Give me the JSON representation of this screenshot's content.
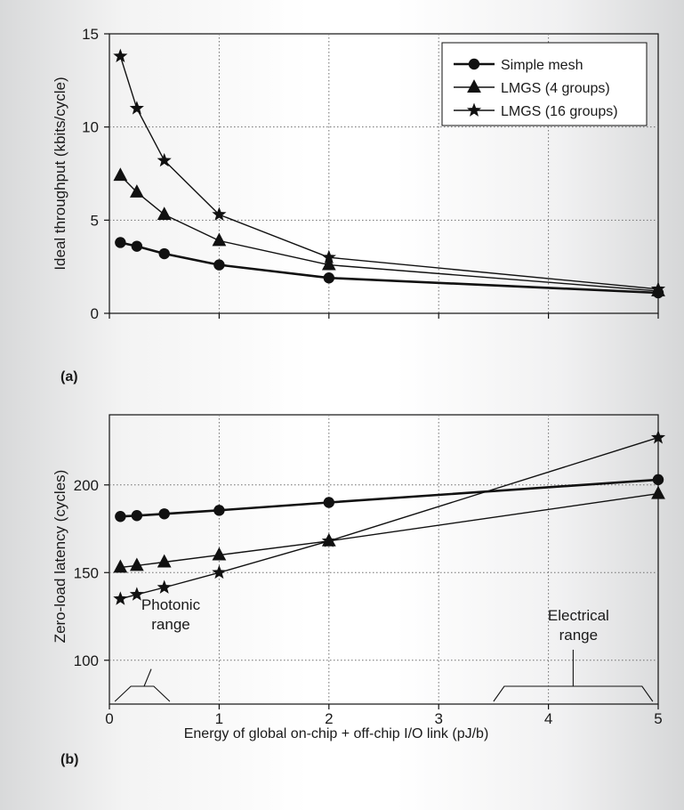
{
  "panel_labels": {
    "a": "(a)",
    "b": "(b)"
  },
  "shared_xlabel": "Energy of global on-chip + off-chip I/O link (pJ/b)",
  "legend": {
    "entries": [
      "Simple mesh",
      "LMGS (4 groups)",
      "LMGS (16 groups)"
    ]
  },
  "colors": {
    "line": "#111111",
    "grid": "#6f6f6f",
    "frame": "#111111"
  },
  "chart_data": [
    {
      "type": "line",
      "ylabel": "Ideal throughput (kbits/cycle)",
      "xlim": [
        0,
        5
      ],
      "ylim": [
        0,
        15
      ],
      "x_ticks": [
        0,
        1,
        2,
        3,
        4,
        5
      ],
      "y_ticks": [
        0,
        5,
        10,
        15
      ],
      "grid": true,
      "legend_position": "top-right",
      "x": [
        0.1,
        0.25,
        0.5,
        1,
        2,
        5
      ],
      "series": [
        {
          "name": "Simple mesh",
          "marker": "circle",
          "values": [
            3.8,
            3.6,
            3.2,
            2.6,
            1.9,
            1.1
          ]
        },
        {
          "name": "LMGS (4 groups)",
          "marker": "triangle",
          "values": [
            7.4,
            6.5,
            5.3,
            3.9,
            2.6,
            1.2
          ]
        },
        {
          "name": "LMGS (16 groups)",
          "marker": "star",
          "values": [
            13.8,
            11.0,
            8.2,
            5.3,
            3.0,
            1.3
          ]
        }
      ]
    },
    {
      "type": "line",
      "ylabel": "Zero-load latency (cycles)",
      "xlim": [
        0,
        5
      ],
      "ylim": [
        75,
        240
      ],
      "x_ticks": [
        0,
        1,
        2,
        3,
        4,
        5
      ],
      "y_ticks": [
        100,
        150,
        200
      ],
      "grid": true,
      "x": [
        0.1,
        0.25,
        0.5,
        1,
        2,
        5
      ],
      "series": [
        {
          "name": "Simple mesh",
          "marker": "circle",
          "values": [
            182,
            182.5,
            183.5,
            185.5,
            190,
            203
          ]
        },
        {
          "name": "LMGS (4 groups)",
          "marker": "triangle",
          "values": [
            153,
            154,
            156,
            160,
            168,
            195
          ]
        },
        {
          "name": "LMGS (16 groups)",
          "marker": "star",
          "values": [
            135,
            137.5,
            141.5,
            150,
            168,
            227
          ]
        }
      ],
      "annotations": [
        {
          "text_lines": [
            "Photonic",
            "range"
          ],
          "bracket_x": [
            0.05,
            0.55
          ]
        },
        {
          "text_lines": [
            "Electrical",
            "range"
          ],
          "bracket_x": [
            3.5,
            4.95
          ]
        }
      ]
    }
  ]
}
